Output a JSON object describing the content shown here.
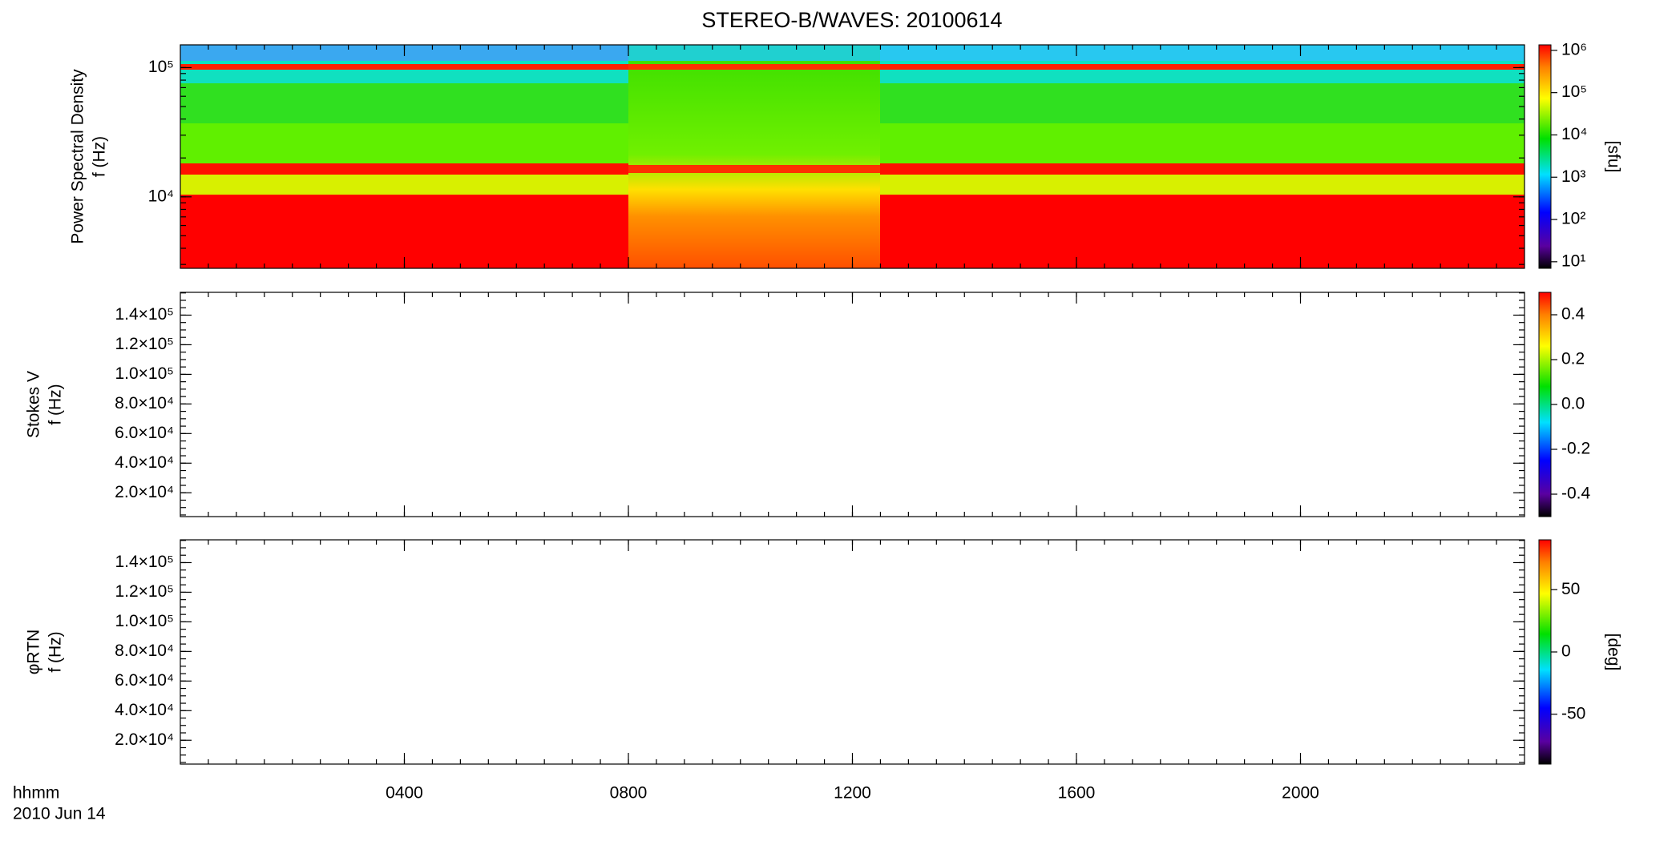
{
  "chart_data": [
    {
      "type": "spectrogram",
      "title": "STEREO-B/WAVES: 20100614",
      "ylabel": [
        "Power Spectral Density",
        "f (Hz)"
      ],
      "log": true,
      "ylim": [
        2800,
        150000
      ],
      "yticks": [
        {
          "value": 10000,
          "label": "10⁴"
        },
        {
          "value": 100000,
          "label": "10⁵"
        }
      ],
      "colorbar": {
        "label": "[sfu]",
        "log": true,
        "lim": [
          7,
          1350000
        ],
        "ticks": [
          {
            "value": 10,
            "label": "10¹"
          },
          {
            "value": 100,
            "label": "10²"
          },
          {
            "value": 1000,
            "label": "10³"
          },
          {
            "value": 10000,
            "label": "10⁴"
          },
          {
            "value": 100000,
            "label": "10⁵"
          },
          {
            "value": 1000000,
            "label": "10⁶"
          }
        ]
      }
    },
    {
      "type": "spectrogram",
      "ylabel": [
        "Stokes V",
        "f (Hz)"
      ],
      "log": false,
      "ylim": [
        3900,
        155400
      ],
      "yticks": [
        {
          "value": 20000,
          "label": "2.0×10⁴"
        },
        {
          "value": 40000,
          "label": "4.0×10⁴"
        },
        {
          "value": 60000,
          "label": "6.0×10⁴"
        },
        {
          "value": 80000,
          "label": "8.0×10⁴"
        },
        {
          "value": 100000,
          "label": "1.0×10⁵"
        },
        {
          "value": 120000,
          "label": "1.2×10⁵"
        },
        {
          "value": 140000,
          "label": "1.4×10⁵"
        }
      ],
      "colorbar": {
        "log": false,
        "lim": [
          -0.5,
          0.5
        ],
        "ticks": [
          -0.4,
          -0.2,
          {
            "value": 0,
            "label": "0.0"
          },
          0.2,
          0.4
        ]
      }
    },
    {
      "type": "spectrogram",
      "ylabel": [
        "φRTN",
        "f (Hz)"
      ],
      "log": false,
      "ylim": [
        3900,
        155400
      ],
      "yticks": [
        {
          "value": 20000,
          "label": "2.0×10⁴"
        },
        {
          "value": 40000,
          "label": "4.0×10⁴"
        },
        {
          "value": 60000,
          "label": "6.0×10⁴"
        },
        {
          "value": 80000,
          "label": "8.0×10⁴"
        },
        {
          "value": 100000,
          "label": "1.0×10⁵"
        },
        {
          "value": 120000,
          "label": "1.2×10⁵"
        },
        {
          "value": 140000,
          "label": "1.4×10⁵"
        }
      ],
      "colorbar": {
        "label": "[deg]",
        "log": false,
        "lim": [
          -90,
          90
        ],
        "ticks": [
          -50,
          0,
          50
        ]
      },
      "xlabel": "hhmm",
      "date": "2010 Jun 14",
      "xlim": [
        0,
        24
      ],
      "xticks": [
        {
          "value": 4,
          "label": "0400"
        },
        {
          "value": 8,
          "label": "0800"
        },
        {
          "value": 12,
          "label": "1200"
        },
        {
          "value": 16,
          "label": "1600"
        },
        {
          "value": 20,
          "label": "2000"
        }
      ]
    }
  ]
}
